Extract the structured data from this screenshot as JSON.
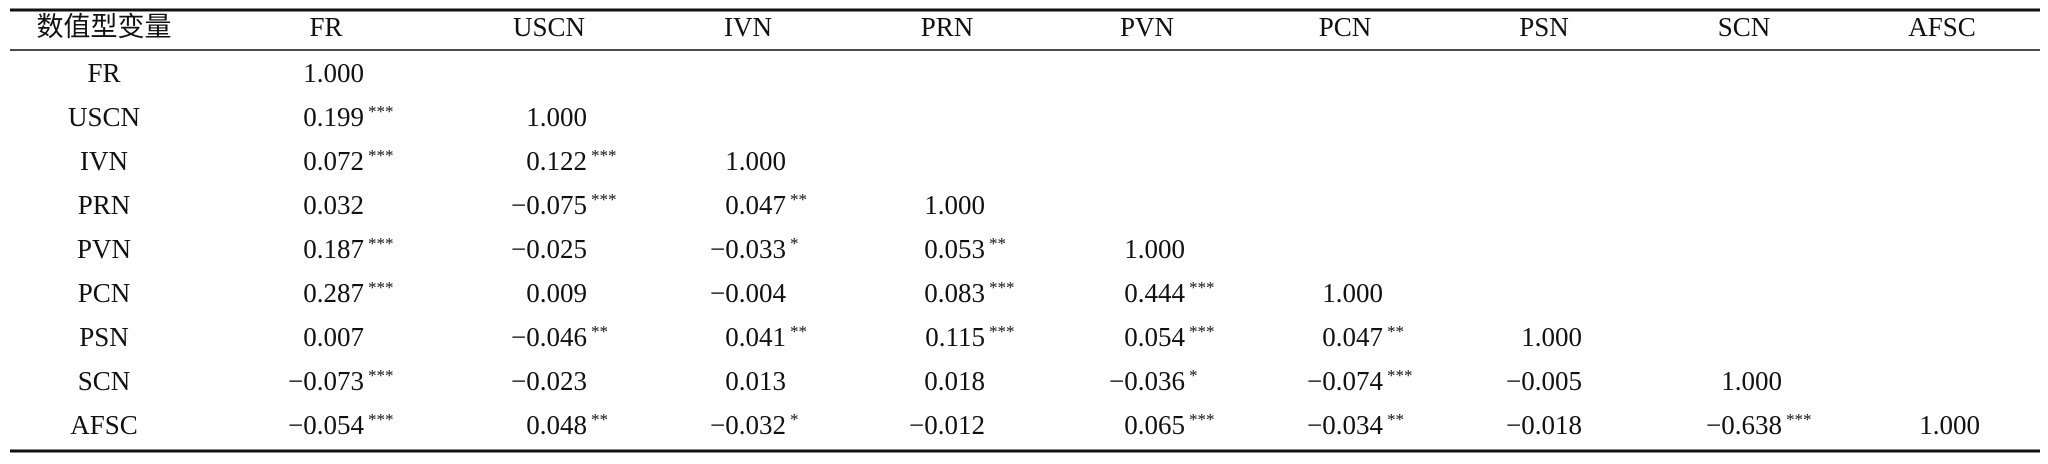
{
  "table": {
    "header": [
      "数值型变量",
      "FR",
      "USCN",
      "IVN",
      "PRN",
      "PVN",
      "PCN",
      "PSN",
      "SCN",
      "AFSC"
    ],
    "rows": [
      {
        "label": "FR",
        "cells": [
          {
            "value": "1.000"
          }
        ]
      },
      {
        "label": "USCN",
        "cells": [
          {
            "value": "0.199",
            "sig": "***"
          },
          {
            "value": "1.000"
          }
        ]
      },
      {
        "label": "IVN",
        "cells": [
          {
            "value": "0.072",
            "sig": "***"
          },
          {
            "value": "0.122",
            "sig": "***"
          },
          {
            "value": "1.000"
          }
        ]
      },
      {
        "label": "PRN",
        "cells": [
          {
            "value": "0.032"
          },
          {
            "value": "−0.075",
            "sig": "***"
          },
          {
            "value": "0.047",
            "sig": "**"
          },
          {
            "value": "1.000"
          }
        ]
      },
      {
        "label": "PVN",
        "cells": [
          {
            "value": "0.187",
            "sig": "***"
          },
          {
            "value": "−0.025"
          },
          {
            "value": "−0.033",
            "sig": "*"
          },
          {
            "value": "0.053",
            "sig": "**"
          },
          {
            "value": "1.000"
          }
        ]
      },
      {
        "label": "PCN",
        "cells": [
          {
            "value": "0.287",
            "sig": "***"
          },
          {
            "value": "0.009"
          },
          {
            "value": "−0.004"
          },
          {
            "value": "0.083",
            "sig": "***"
          },
          {
            "value": "0.444",
            "sig": "***"
          },
          {
            "value": "1.000"
          }
        ]
      },
      {
        "label": "PSN",
        "cells": [
          {
            "value": "0.007"
          },
          {
            "value": "−0.046",
            "sig": "**"
          },
          {
            "value": "0.041",
            "sig": "**"
          },
          {
            "value": "0.115",
            "sig": "***"
          },
          {
            "value": "0.054",
            "sig": "***"
          },
          {
            "value": "0.047",
            "sig": "**"
          },
          {
            "value": "1.000"
          }
        ]
      },
      {
        "label": "SCN",
        "cells": [
          {
            "value": "−0.073",
            "sig": "***"
          },
          {
            "value": "−0.023"
          },
          {
            "value": "0.013"
          },
          {
            "value": "0.018"
          },
          {
            "value": "−0.036",
            "sig": "*"
          },
          {
            "value": "−0.074",
            "sig": "***"
          },
          {
            "value": "−0.005"
          },
          {
            "value": "1.000"
          }
        ]
      },
      {
        "label": "AFSC",
        "cells": [
          {
            "value": "−0.054",
            "sig": "***"
          },
          {
            "value": "0.048",
            "sig": "**"
          },
          {
            "value": "−0.032",
            "sig": "*"
          },
          {
            "value": "−0.012"
          },
          {
            "value": "0.065",
            "sig": "***"
          },
          {
            "value": "−0.034",
            "sig": "**"
          },
          {
            "value": "−0.018"
          },
          {
            "value": "−0.638",
            "sig": "***"
          },
          {
            "value": "1.000"
          }
        ]
      }
    ]
  }
}
